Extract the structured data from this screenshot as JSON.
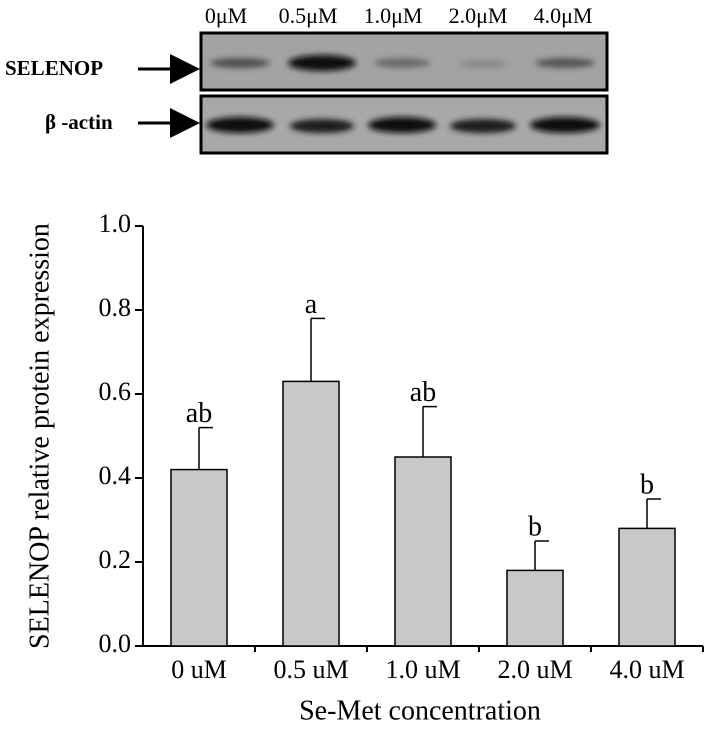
{
  "blot": {
    "lanes": [
      "0μM",
      "0.5μM",
      "1.0μM",
      "2.0μM",
      "4.0μM"
    ],
    "rows": [
      "SELENOP",
      "β -actin"
    ]
  },
  "chart_data": {
    "type": "bar",
    "categories": [
      "0 uM",
      "0.5 uM",
      "1.0 uM",
      "2.0 uM",
      "4.0 uM"
    ],
    "values": [
      0.42,
      0.63,
      0.45,
      0.18,
      0.28
    ],
    "errors": [
      0.1,
      0.15,
      0.12,
      0.07,
      0.07
    ],
    "significance_labels": [
      "ab",
      "a",
      "ab",
      "b",
      "b"
    ],
    "color": "#c8c8c8",
    "xlabel": "Se-Met concentration",
    "ylabel": "SELENOP relative protein expression",
    "ylim": [
      0,
      1.0
    ],
    "yticks": [
      {
        "value": 0,
        "label": "0.0"
      },
      0.2,
      0.4,
      0.6,
      0.8,
      {
        "value": 1.0,
        "label": "1.0"
      }
    ],
    "grid": false
  }
}
